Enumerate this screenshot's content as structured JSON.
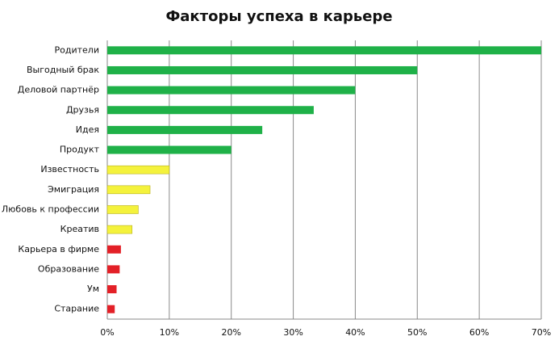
{
  "chart_data": {
    "type": "barh",
    "title": "Факторы успеха в карьере",
    "categories": [
      "Родители",
      "Выгодный брак",
      "Деловой партнёр",
      "Друзья",
      "Идея",
      "Продукт",
      "Известность",
      "Эмиграция",
      "Любовь к профессии",
      "Креатив",
      "Карьера в фирме",
      "Образование",
      "Ум",
      "Старание"
    ],
    "values": [
      70,
      50,
      40,
      33.3,
      25,
      20,
      10,
      6.9,
      5,
      4,
      2.2,
      2,
      1.5,
      1.2
    ],
    "colors": [
      "#1fb148",
      "#1fb148",
      "#1fb148",
      "#1fb148",
      "#1fb148",
      "#1fb148",
      "#f4f23c",
      "#f4f23c",
      "#f4f23c",
      "#f4f23c",
      "#e32027",
      "#e32027",
      "#e32027",
      "#e32027"
    ],
    "xlim": [
      0,
      70
    ],
    "xticks": [
      {
        "value": 0,
        "label": "0%"
      },
      {
        "value": 10,
        "label": "10%"
      },
      {
        "value": 20,
        "label": "20%"
      },
      {
        "value": 30,
        "label": "30%"
      },
      {
        "value": 40,
        "label": "40%"
      },
      {
        "value": 50,
        "label": "50%"
      },
      {
        "value": 60,
        "label": "60%"
      },
      {
        "value": 70,
        "label": "70%"
      }
    ],
    "grid": true
  }
}
